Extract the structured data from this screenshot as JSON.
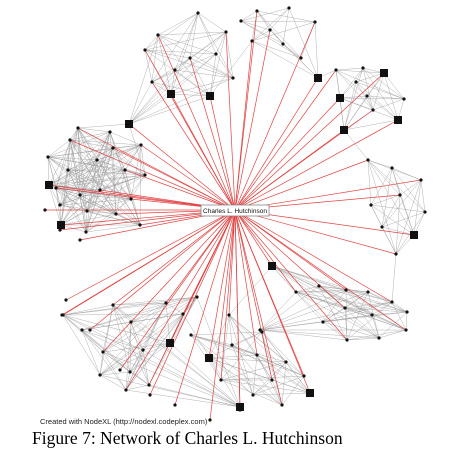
{
  "figure": {
    "center_label": "Charles L. Hutchinson",
    "credit": "Created with NodeXL (http://nodexl.codeplex.com)",
    "caption": "Figure 7: Network of Charles L. Hutchinson"
  },
  "colors": {
    "ego_edge": "#e03a3a",
    "cluster_edge": "#9a9a9a",
    "node": "#111111",
    "label_border": "#888888"
  }
}
